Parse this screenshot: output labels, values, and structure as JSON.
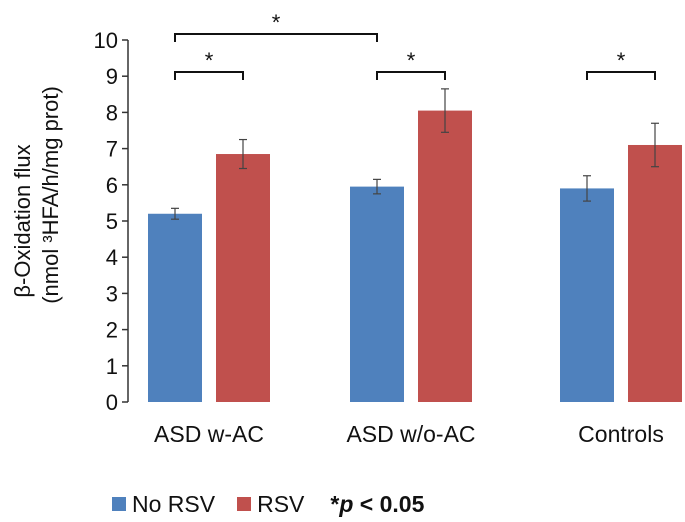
{
  "chart_data": {
    "type": "bar",
    "ylabel": "β-Oxidation flux",
    "ylabel_units": "(nmol ³HFA/h/mg prot)",
    "ylim": [
      0,
      10
    ],
    "yticks": [
      "0",
      "1",
      "2",
      "3",
      "4",
      "5",
      "6",
      "7",
      "8",
      "9",
      "10"
    ],
    "categories": [
      "ASD w-AC",
      "ASD w/o-AC",
      "Controls"
    ],
    "series": [
      {
        "name": "No RSV",
        "color": "#4f81bd",
        "values": [
          5.2,
          5.95,
          5.9
        ],
        "errors": [
          0.15,
          0.2,
          0.35
        ]
      },
      {
        "name": "RSV",
        "color": "#c0504d",
        "values": [
          6.85,
          8.05,
          7.1
        ],
        "errors": [
          0.4,
          0.6,
          0.6
        ]
      }
    ],
    "significance": [
      {
        "from": [
          0,
          0
        ],
        "to": [
          0,
          1
        ],
        "label": "*"
      },
      {
        "from": [
          1,
          0
        ],
        "to": [
          1,
          1
        ],
        "label": "*"
      },
      {
        "from": [
          2,
          0
        ],
        "to": [
          2,
          1
        ],
        "label": "*"
      },
      {
        "from": [
          0,
          0
        ],
        "to": [
          1,
          0
        ],
        "label": "*"
      }
    ],
    "grid": false,
    "legend_position": "bottom-left"
  },
  "legend": {
    "items": [
      {
        "label": "No RSV",
        "color": "#4f81bd"
      },
      {
        "label": "RSV",
        "color": "#c0504d"
      }
    ],
    "note_star": "*",
    "note_p": "p",
    "note_rest": " < 0.05"
  }
}
